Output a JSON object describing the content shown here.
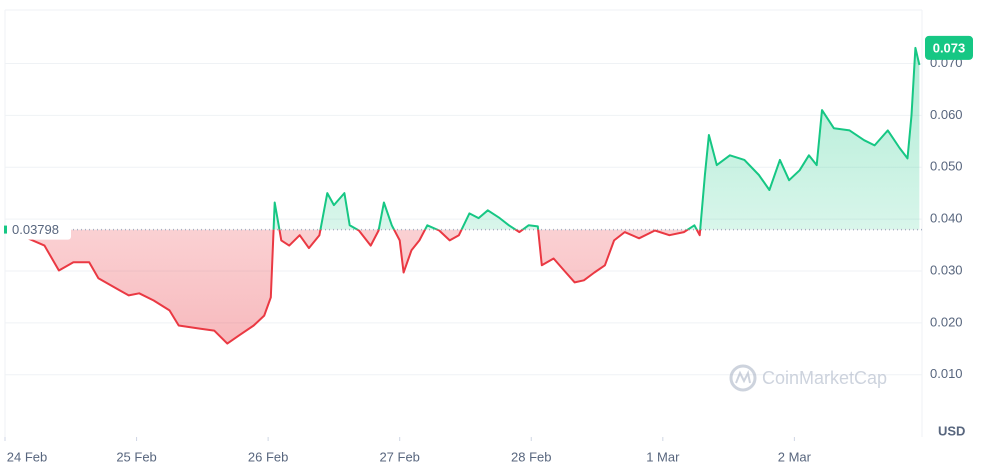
{
  "chart_data": {
    "type": "line",
    "x": [
      0,
      0.3,
      0.41,
      0.52,
      0.64,
      0.71,
      0.87,
      0.94,
      1.02,
      1.13,
      1.25,
      1.32,
      1.48,
      1.59,
      1.69,
      1.78,
      1.89,
      1.97,
      2.02,
      2.05,
      2.1,
      2.16,
      2.24,
      2.31,
      2.39,
      2.45,
      2.5,
      2.58,
      2.62,
      2.69,
      2.78,
      2.84,
      2.88,
      2.94,
      3.0,
      3.03,
      3.09,
      3.15,
      3.21,
      3.3,
      3.38,
      3.45,
      3.53,
      3.6,
      3.67,
      3.76,
      3.83,
      3.91,
      3.98,
      4.05,
      4.08,
      4.17,
      4.25,
      4.33,
      4.4,
      4.48,
      4.56,
      4.63,
      4.71,
      4.82,
      4.94,
      5.05,
      5.16,
      5.24,
      5.28,
      5.32,
      5.35,
      5.41,
      5.51,
      5.62,
      5.73,
      5.81,
      5.89,
      5.96,
      6.04,
      6.11,
      6.17,
      6.21,
      6.3,
      6.42,
      6.53,
      6.61,
      6.71,
      6.8,
      6.86,
      6.89,
      6.92,
      6.95
    ],
    "values": [
      0.0382,
      0.0349,
      0.0301,
      0.0317,
      0.0317,
      0.0286,
      0.0263,
      0.0253,
      0.0257,
      0.0243,
      0.0224,
      0.0195,
      0.0189,
      0.0185,
      0.016,
      0.0176,
      0.0195,
      0.0214,
      0.0249,
      0.0432,
      0.0359,
      0.0349,
      0.0369,
      0.0344,
      0.0369,
      0.045,
      0.0427,
      0.045,
      0.0388,
      0.0378,
      0.0349,
      0.0378,
      0.0432,
      0.0388,
      0.0359,
      0.0297,
      0.034,
      0.0359,
      0.0388,
      0.0378,
      0.0359,
      0.0369,
      0.0411,
      0.0402,
      0.0417,
      0.0402,
      0.0388,
      0.0375,
      0.0388,
      0.0386,
      0.0311,
      0.0324,
      0.0301,
      0.0278,
      0.0282,
      0.0297,
      0.0311,
      0.0359,
      0.0375,
      0.0363,
      0.0378,
      0.0369,
      0.0375,
      0.0388,
      0.0369,
      0.0485,
      0.0562,
      0.0504,
      0.0523,
      0.0514,
      0.0485,
      0.0456,
      0.0514,
      0.0475,
      0.0494,
      0.0523,
      0.0504,
      0.061,
      0.0575,
      0.0571,
      0.0552,
      0.0542,
      0.0571,
      0.0537,
      0.0517,
      0.06,
      0.073,
      0.0697
    ],
    "baseline": 0.03798,
    "current_price": 0.073,
    "up_color": "#16c784",
    "down_color": "#ea3943",
    "xlim": [
      0,
      6.97
    ],
    "xticks": [
      {
        "value": 0,
        "label": "24 Feb"
      },
      {
        "value": 1,
        "label": "25 Feb"
      },
      {
        "value": 2,
        "label": "26 Feb"
      },
      {
        "value": 3,
        "label": "27 Feb"
      },
      {
        "value": 4,
        "label": "28 Feb"
      },
      {
        "value": 5,
        "label": "1 Mar"
      },
      {
        "value": 6,
        "label": "2 Mar"
      }
    ],
    "ylim": [
      -0.002,
      0.0803
    ],
    "yticks": [
      {
        "value": 0.01,
        "label": "0.010"
      },
      {
        "value": 0.02,
        "label": "0.020"
      },
      {
        "value": 0.03,
        "label": "0.030"
      },
      {
        "value": 0.04,
        "label": "0.040"
      },
      {
        "value": 0.05,
        "label": "0.050"
      },
      {
        "value": 0.06,
        "label": "0.060"
      },
      {
        "value": 0.07,
        "label": "0.070"
      }
    ],
    "y_unit": "USD",
    "watermark": "CoinMarketCap",
    "grid": true
  }
}
